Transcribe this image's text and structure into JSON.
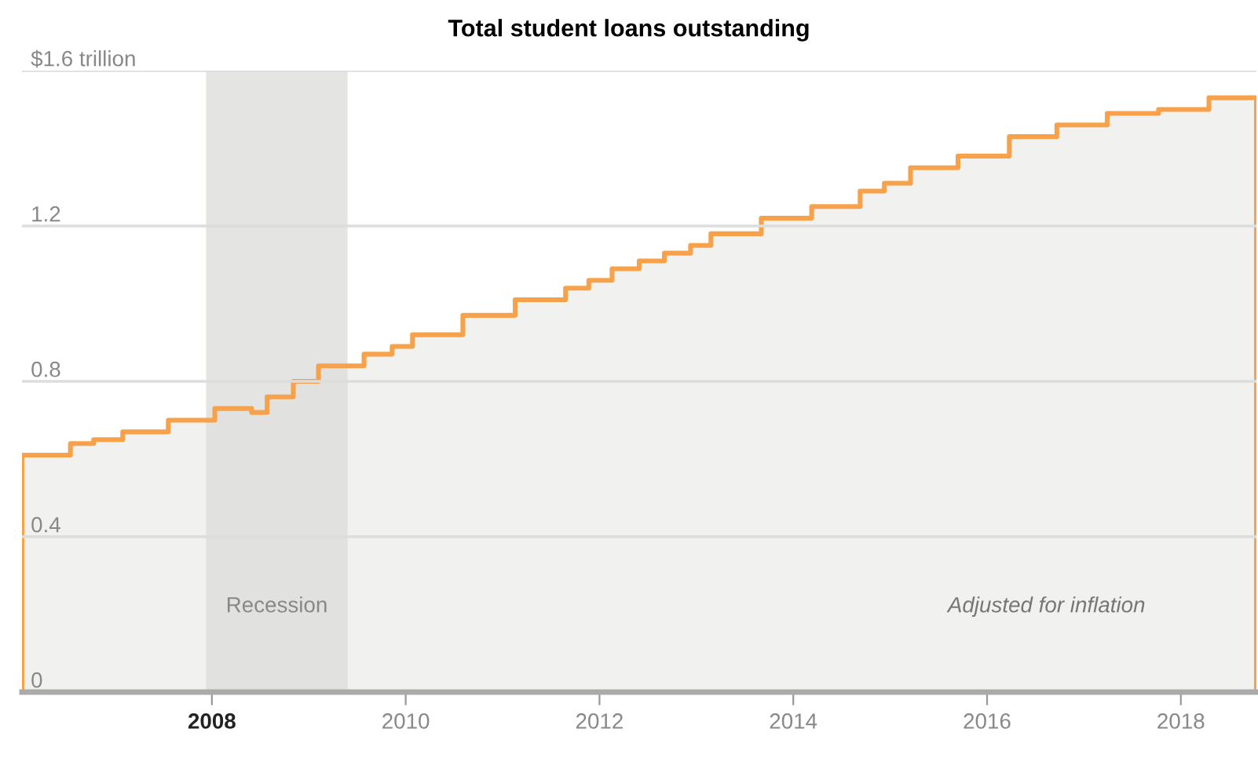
{
  "chart_data": {
    "type": "area",
    "title": "Total student loans outstanding",
    "annotations": [
      "Adjusted for inflation"
    ],
    "x": [
      2006.04,
      2006.54,
      2006.78,
      2007.08,
      2007.55,
      2008.03,
      2008.41,
      2008.57,
      2008.84,
      2009.1,
      2009.57,
      2009.86,
      2010.07,
      2010.59,
      2011.13,
      2011.65,
      2011.89,
      2012.13,
      2012.41,
      2012.67,
      2012.94,
      2013.15,
      2013.67,
      2014.19,
      2014.69,
      2014.94,
      2015.21,
      2015.7,
      2016.23,
      2016.72,
      2017.24,
      2017.77,
      2018.29,
      2018.78
    ],
    "series": [
      {
        "color": "#f7a24b",
        "values": [
          0.61,
          0.64,
          0.65,
          0.67,
          0.7,
          0.73,
          0.72,
          0.76,
          0.8,
          0.84,
          0.87,
          0.89,
          0.92,
          0.97,
          1.01,
          1.04,
          1.06,
          1.09,
          1.11,
          1.13,
          1.15,
          1.18,
          1.22,
          1.25,
          1.29,
          1.31,
          1.35,
          1.38,
          1.43,
          1.46,
          1.49,
          1.5,
          1.53,
          1.53
        ]
      }
    ],
    "xlim": [
      2006.04,
      2018.78
    ],
    "xticks": [
      2008,
      2010,
      2012,
      2014,
      2016,
      2018
    ],
    "ylim": [
      0,
      1.6
    ],
    "yticks": [
      0,
      0.4,
      0.8,
      1.2,
      {
        "value": 1.6,
        "label": "$1.6 trillion"
      }
    ],
    "bands": [
      {
        "axis": "x",
        "from": 2007.94,
        "to": 2009.4,
        "label": "Recession",
        "color": "#e4e4e3"
      }
    ],
    "grid": "y",
    "legend": false
  }
}
